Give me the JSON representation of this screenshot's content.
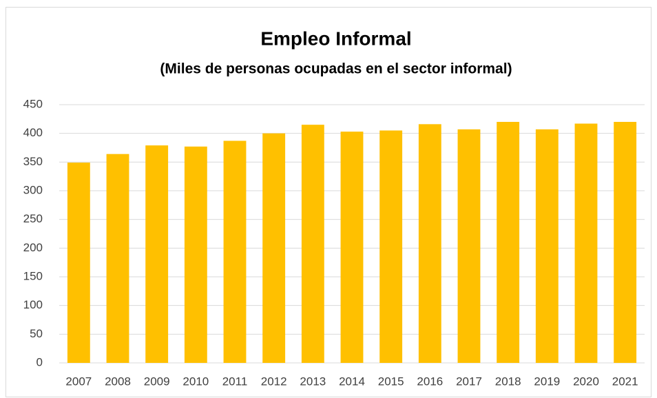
{
  "chart_data": {
    "type": "bar",
    "title": "Empleo Informal",
    "subtitle": "(Miles de personas ocupadas en el sector informal)",
    "categories": [
      "2007",
      "2008",
      "2009",
      "2010",
      "2011",
      "2012",
      "2013",
      "2014",
      "2015",
      "2016",
      "2017",
      "2018",
      "2019",
      "2020",
      "2021"
    ],
    "values": [
      349,
      364,
      379,
      377,
      387,
      400,
      415,
      403,
      405,
      416,
      407,
      420,
      407,
      417,
      420
    ],
    "color": "#ffc000",
    "ylim": [
      0,
      450
    ],
    "yticks": [
      0,
      50,
      100,
      150,
      200,
      250,
      300,
      350,
      400,
      450
    ],
    "grid": true
  }
}
